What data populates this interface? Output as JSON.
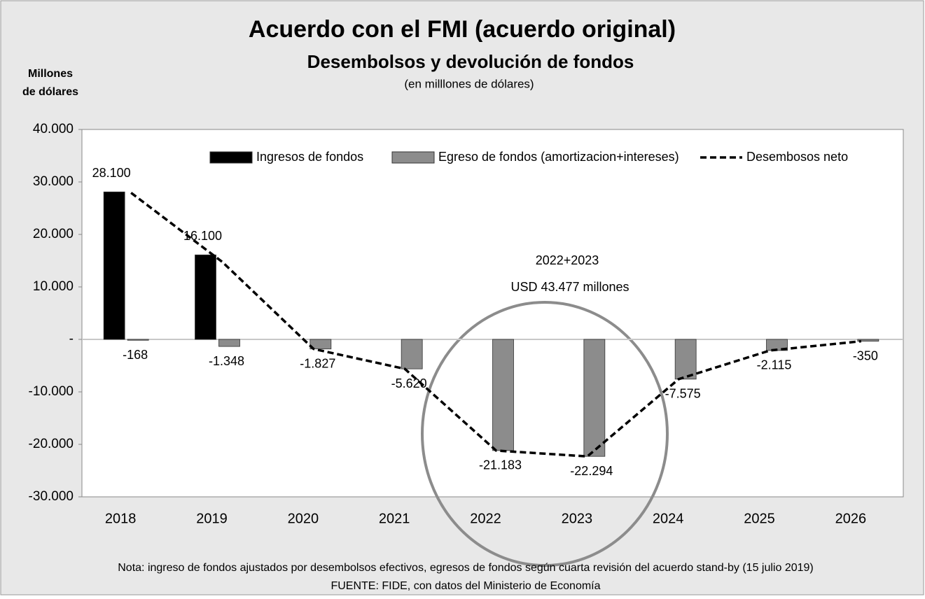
{
  "chart_data": {
    "type": "bar",
    "title": "Acuerdo con el FMI (acuerdo original)",
    "subtitle": "Desembolsos y devolución de fondos",
    "subtitle2": "(en milllones de dólares)",
    "ylabel": [
      "Millones",
      "de dólares"
    ],
    "categories": [
      "2018",
      "2019",
      "2020",
      "2021",
      "2022",
      "2023",
      "2024",
      "2025",
      "2026"
    ],
    "series": [
      {
        "name": "Ingresos de fondos",
        "color": "#000000",
        "type": "bar",
        "values": [
          28100,
          16100,
          null,
          null,
          null,
          null,
          null,
          null,
          null
        ],
        "value_labels": [
          "28.100",
          "16.100",
          null,
          null,
          null,
          null,
          null,
          null,
          null
        ]
      },
      {
        "name": "Egreso de fondos (amortizacion+intereses)",
        "color": "#8c8c8c",
        "type": "bar",
        "values": [
          -168,
          -1348,
          -1827,
          -5620,
          -21183,
          -22294,
          -7575,
          -2115,
          -350
        ],
        "value_labels": [
          "-168",
          "-1.348",
          "-1.827",
          "-5.620",
          "-21.183",
          "-22.294",
          "-7.575",
          "-2.115",
          "-350"
        ]
      },
      {
        "name": "Desembosos neto",
        "color": "#000000",
        "type": "line",
        "values": [
          27932,
          14752,
          -1827,
          -5620,
          -21183,
          -22294,
          -7575,
          -2115,
          -350
        ]
      }
    ],
    "ylim": [
      -30000,
      40000
    ],
    "yticks": [
      {
        "value": -30000,
        "label": "-30.000"
      },
      {
        "value": -20000,
        "label": "-20.000"
      },
      {
        "value": -10000,
        "label": "-10.000"
      },
      {
        "value": 0,
        "label": "-"
      },
      {
        "value": 10000,
        "label": "10.000"
      },
      {
        "value": 20000,
        "label": "20.000"
      },
      {
        "value": 30000,
        "label": "30.000"
      },
      {
        "value": 40000,
        "label": "40.000"
      }
    ],
    "annotations": [
      "2022+2023",
      "USD 43.477 millones"
    ],
    "note": "Nota: ingreso de fondos ajustados por desembolsos efectivos, egresos de fondos según cuarta revisión del acuerdo stand-by  (15 julio 2019)",
    "source": "FUENTE: FIDE, con datos del Ministerio de Economía"
  }
}
